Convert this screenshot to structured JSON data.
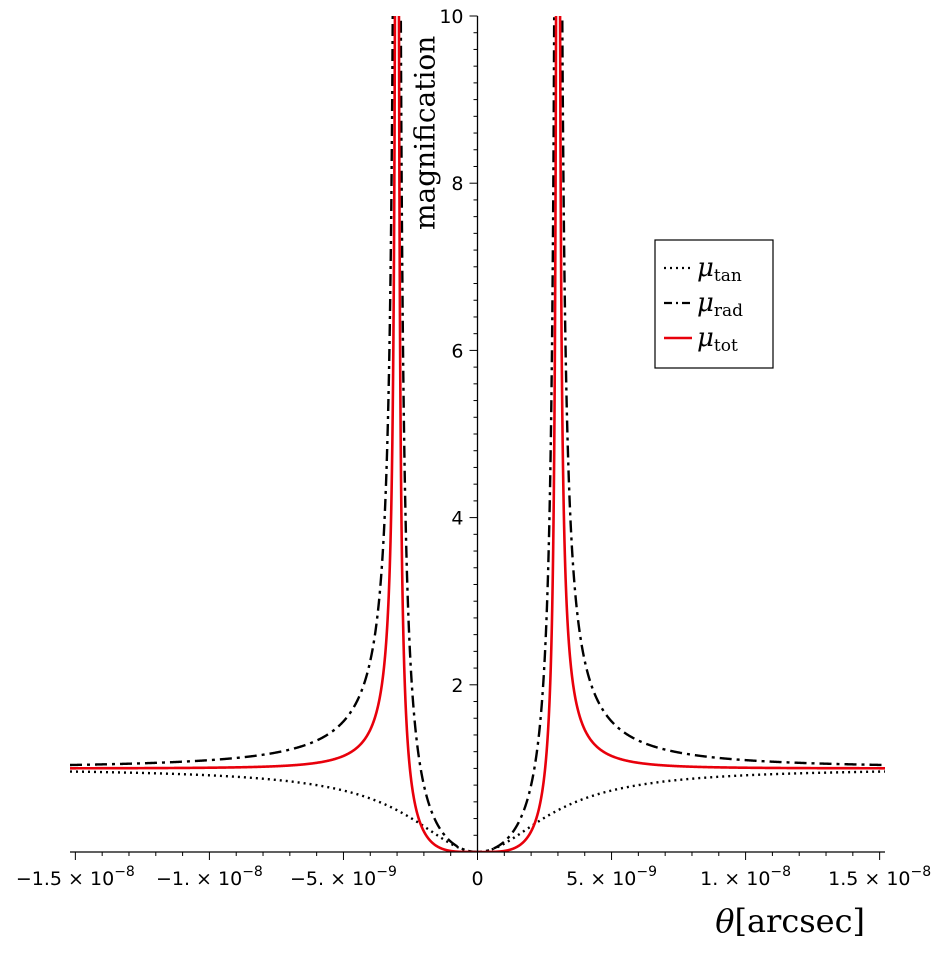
{
  "chart_data": {
    "type": "line",
    "title": "",
    "xlabel": "θ[arcsec]",
    "xlabel_symbol": "θ",
    "xlabel_unit": "[arcsec]",
    "ylabel": "magnification",
    "xlim": [
      -1.52e-08,
      1.52e-08
    ],
    "ylim": [
      0,
      10
    ],
    "grid": false,
    "legend_position": "top-right",
    "x_ticks": [
      {
        "value": -1.5e-08,
        "mantissa": "−1.5",
        "power": "−8"
      },
      {
        "value": -1e-08,
        "mantissa": "−1.",
        "power": "−8"
      },
      {
        "value": -5e-09,
        "mantissa": "−5.",
        "power": "−9"
      },
      {
        "value": 0,
        "mantissa": "0",
        "power": ""
      },
      {
        "value": 5e-09,
        "mantissa": "5.",
        "power": "−9"
      },
      {
        "value": 1e-08,
        "mantissa": "1.",
        "power": "−8"
      },
      {
        "value": 1.5e-08,
        "mantissa": "1.5",
        "power": "−8"
      }
    ],
    "y_ticks": [
      2,
      4,
      6,
      8,
      10
    ],
    "einstein_radius": 3e-09,
    "series": [
      {
        "name": "μtan",
        "symbol": "μ",
        "subscript": "tan",
        "color": "#000000",
        "style": "dotted",
        "formula": "x^2/(x^2+1)",
        "x": [
          0,
          5e-10,
          1e-09,
          2e-09,
          3e-09,
          5e-09,
          1e-08,
          1.5e-08
        ],
        "values": [
          0,
          0.027,
          0.1,
          0.31,
          0.5,
          0.74,
          0.92,
          0.96
        ]
      },
      {
        "name": "μrad",
        "symbol": "μ",
        "subscript": "rad",
        "color": "#000000",
        "style": "dashdot",
        "formula": "x^2/|x^2-1|",
        "x": [
          0,
          5e-10,
          1e-09,
          2e-09,
          2.8e-09,
          3.2e-09,
          5e-09,
          1e-08,
          1.5e-08
        ],
        "values": [
          0,
          0.029,
          0.125,
          0.8,
          6.8,
          7.8,
          1.56,
          1.1,
          1.04
        ]
      },
      {
        "name": "μtot",
        "symbol": "μ",
        "subscript": "tot",
        "color": "#e8000b",
        "style": "solid",
        "formula": "x^4/|x^4-1|",
        "x": [
          0,
          5e-10,
          1e-09,
          2e-09,
          2.9e-09,
          3.1e-09,
          5e-09,
          1e-08,
          1.5e-08
        ],
        "values": [
          0,
          0.0008,
          0.012,
          0.25,
          7.1,
          7.5,
          1.15,
          1.01,
          1.0
        ]
      }
    ]
  }
}
